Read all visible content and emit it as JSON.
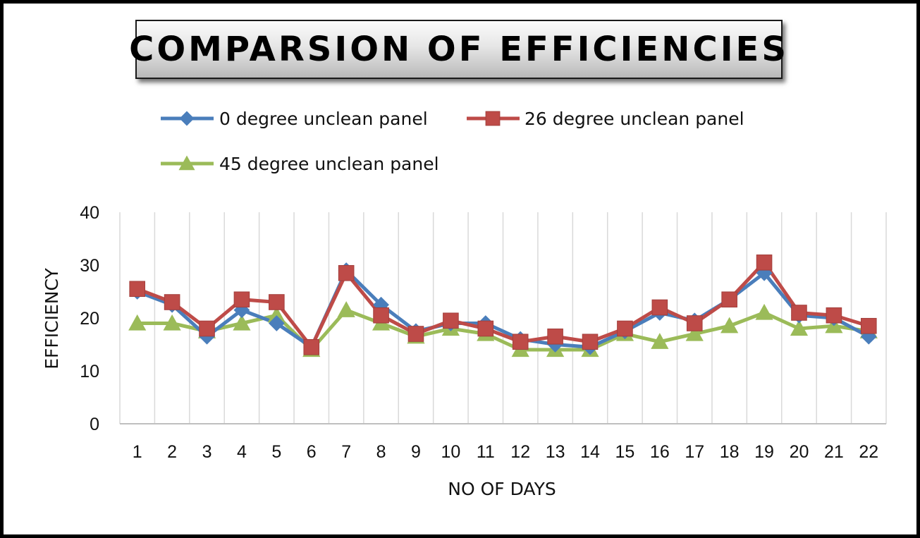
{
  "chart_data": {
    "type": "line",
    "title": "COMPARSION  OF  EFFICIENCIES",
    "xlabel": "NO OF DAYS",
    "ylabel": "EFFICIENCY",
    "categories": [
      "1",
      "2",
      "3",
      "4",
      "5",
      "6",
      "7",
      "8",
      "9",
      "10",
      "11",
      "12",
      "13",
      "14",
      "15",
      "16",
      "17",
      "18",
      "19",
      "20",
      "21",
      "22"
    ],
    "ylim": [
      0,
      40
    ],
    "yticks": [
      0,
      10,
      20,
      30,
      40
    ],
    "grid": "vertical",
    "legend_position": "top",
    "series": [
      {
        "name": "0 degree unclean panel",
        "color": "#4a7ebb",
        "marker": "diamond",
        "values": [
          25,
          22.5,
          16.5,
          21.5,
          19,
          14.5,
          29,
          22.5,
          17.5,
          19,
          19,
          16,
          15,
          14.5,
          17.5,
          21,
          19.5,
          23.5,
          28.5,
          20.5,
          20,
          16.5
        ]
      },
      {
        "name": "26 degree unclean panel",
        "color": "#be4b48",
        "marker": "square",
        "values": [
          25.5,
          23,
          18,
          23.5,
          23,
          14.5,
          28.5,
          20.5,
          17,
          19.5,
          18,
          15.5,
          16.5,
          15.5,
          18,
          22,
          19,
          23.5,
          30.5,
          21,
          20.5,
          18.5
        ]
      },
      {
        "name": "45 degree unclean panel",
        "color": "#9bbb59",
        "marker": "triangle",
        "values": [
          19,
          19,
          17.5,
          19,
          20.5,
          14,
          21.5,
          19,
          16.5,
          18,
          17,
          14,
          14,
          14,
          17,
          15.5,
          17,
          18.5,
          21,
          18,
          18.5,
          17.5
        ]
      }
    ]
  }
}
